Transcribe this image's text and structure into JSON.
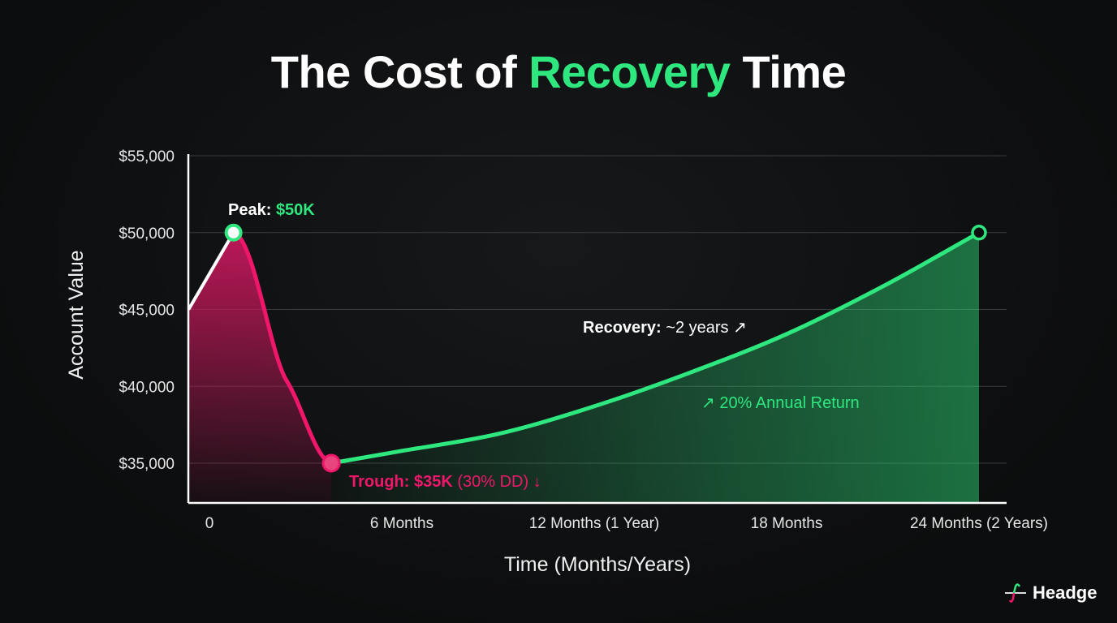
{
  "title": {
    "part1": "The Cost of ",
    "accent": "Recovery",
    "part2": " Time"
  },
  "brand": {
    "name": "Headge"
  },
  "colors": {
    "background": "#0c0d0e",
    "drawdown": "#f0176a",
    "recovery": "#2ee87f",
    "pre_peak": "#ffffff",
    "grid": "#3a3b3d"
  },
  "chart_data": {
    "type": "line",
    "title": "The Cost of Recovery Time",
    "xlabel": "Time (Months/Years)",
    "ylabel": "Account Value",
    "xlim": [
      -0.65,
      24
    ],
    "ylim": [
      32400,
      55000
    ],
    "grid": true,
    "x_ticks": [
      {
        "value": 0,
        "label": "0"
      },
      {
        "value": 6,
        "label": "6 Months"
      },
      {
        "value": 12,
        "label": "12 Months (1 Year)"
      },
      {
        "value": 18,
        "label": "18 Months"
      },
      {
        "value": 24,
        "label": "24 Months (2 Years)"
      }
    ],
    "y_ticks": [
      {
        "value": 35000,
        "label": "$35,000"
      },
      {
        "value": 40000,
        "label": "$40,000"
      },
      {
        "value": 45000,
        "label": "$45,000"
      },
      {
        "value": 50000,
        "label": "$50,000"
      },
      {
        "value": 55000,
        "label": "$55,000"
      }
    ],
    "series": [
      {
        "segment": "pre-peak",
        "points": [
          [
            -0.65,
            45000
          ],
          [
            0.75,
            50000
          ]
        ]
      },
      {
        "segment": "drawdown",
        "points": [
          [
            0.75,
            50000
          ],
          [
            3.8,
            35000
          ]
        ]
      },
      {
        "segment": "recovery",
        "points": [
          [
            3.8,
            35000
          ],
          [
            6,
            35800
          ],
          [
            9,
            36900
          ],
          [
            12,
            38700
          ],
          [
            15,
            40900
          ],
          [
            18,
            43400
          ],
          [
            21,
            46500
          ],
          [
            24,
            50000
          ]
        ]
      }
    ],
    "markers": [
      {
        "name": "peak",
        "x": 0.75,
        "y": 50000
      },
      {
        "name": "trough",
        "x": 3.8,
        "y": 35000
      },
      {
        "name": "recovered",
        "x": 24,
        "y": 50000
      }
    ],
    "annotations": {
      "peak_label": "Peak: ",
      "peak_value": "$50K",
      "trough_label": "Trough: $35K",
      "trough_detail": " (30% DD) ↓",
      "recovery_label": "Recovery:",
      "recovery_value": " ~2 years ↗",
      "return_label": "↗ 20% Annual Return"
    }
  }
}
